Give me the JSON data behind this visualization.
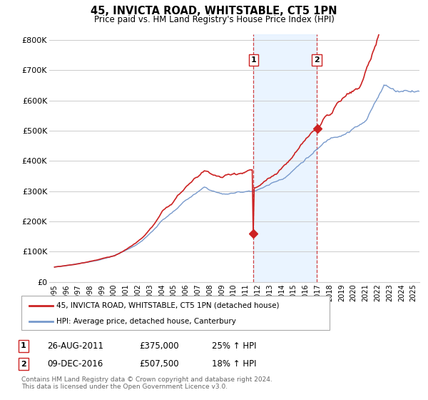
{
  "title": "45, INVICTA ROAD, WHITSTABLE, CT5 1PN",
  "subtitle": "Price paid vs. HM Land Registry's House Price Index (HPI)",
  "ylim": [
    0,
    820000
  ],
  "yticks": [
    0,
    100000,
    200000,
    300000,
    400000,
    500000,
    600000,
    700000,
    800000
  ],
  "ytick_labels": [
    "£0",
    "£100K",
    "£200K",
    "£300K",
    "£400K",
    "£500K",
    "£600K",
    "£700K",
    "£800K"
  ],
  "legend_line1": "45, INVICTA ROAD, WHITSTABLE, CT5 1PN (detached house)",
  "legend_line2": "HPI: Average price, detached house, Canterbury",
  "event1_label": "1",
  "event1_date": "26-AUG-2011",
  "event1_price": "£375,000",
  "event1_hpi": "25% ↑ HPI",
  "event2_label": "2",
  "event2_date": "09-DEC-2016",
  "event2_price": "£507,500",
  "event2_hpi": "18% ↑ HPI",
  "footer": "Contains HM Land Registry data © Crown copyright and database right 2024.\nThis data is licensed under the Open Government Licence v3.0.",
  "red_color": "#cc2222",
  "blue_color": "#7799cc",
  "vline_color": "#cc2222",
  "grid_color": "#cccccc",
  "background_color": "#ffffff",
  "shaded_region_color": "#ddeeff",
  "event1_x": 2011.64,
  "event2_x": 2016.92,
  "event1_y": 375000,
  "event2_y": 507500,
  "xlim_left": 1994.6,
  "xlim_right": 2025.5
}
